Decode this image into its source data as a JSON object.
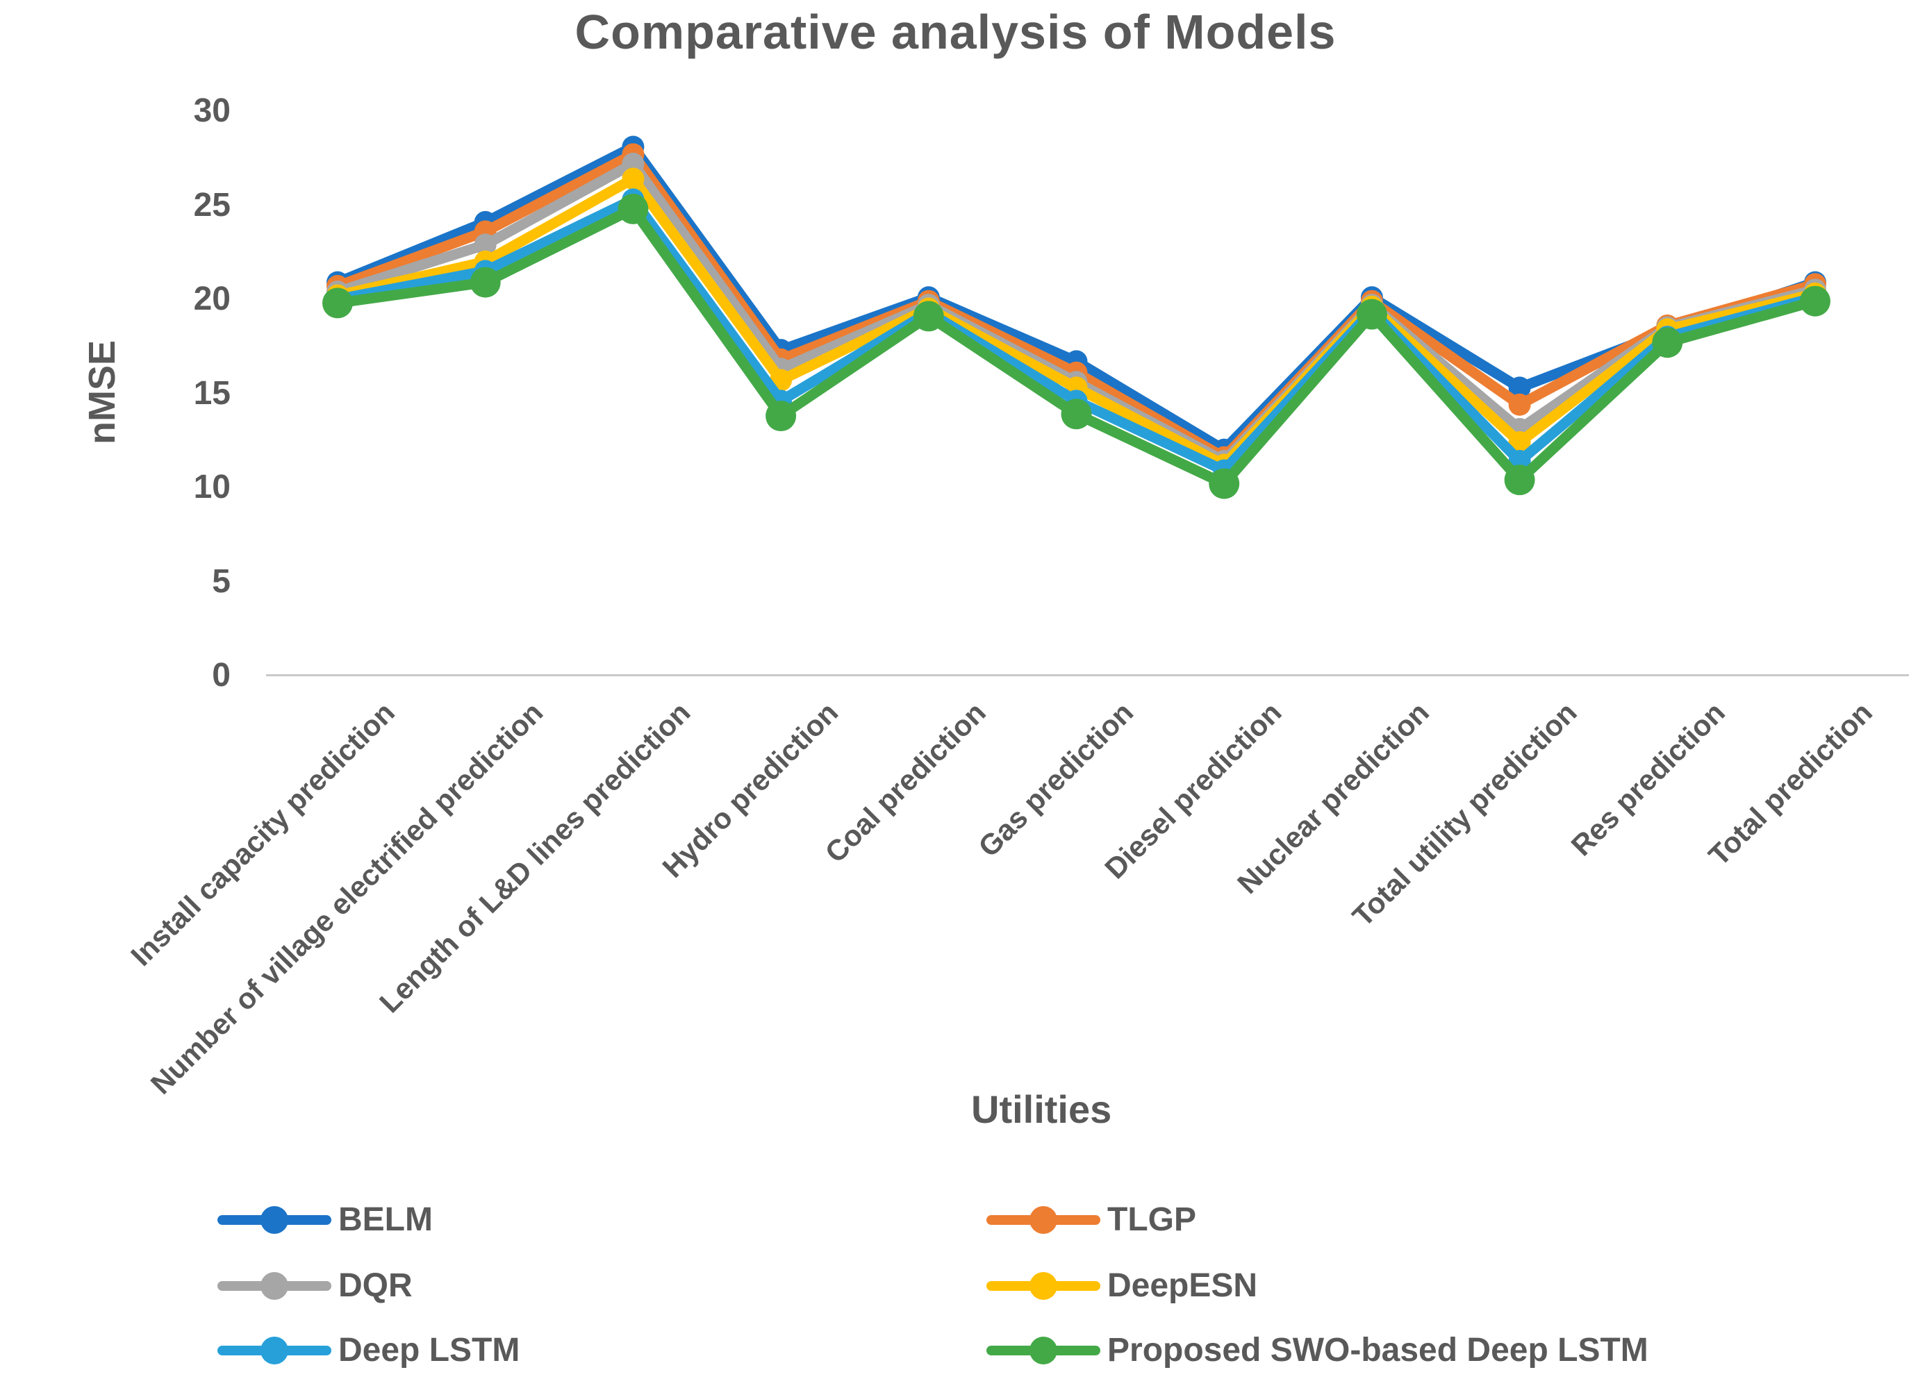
{
  "chart_data": {
    "type": "line",
    "title": "Comparative analysis of Models",
    "xlabel": "Utilities",
    "ylabel": "nMSE",
    "ylim": [
      0,
      30
    ],
    "ytick_labels": [
      "30",
      "25",
      "20",
      "15",
      "10",
      "5",
      "0"
    ],
    "grid": false,
    "legend_position": "bottom",
    "categories": [
      "Install capacity prediction",
      "Number of village electrified prediction",
      "Length of L&D lines prediction",
      "Hydro prediction",
      "Coal prediction",
      "Gas prediction",
      "Diesel prediction",
      "Nuclear prediction",
      "Total utility prediction",
      "Res prediction",
      "Total prediction"
    ],
    "series": [
      {
        "name": "BELM",
        "color": "#1B74C8",
        "values": [
          20.9,
          24.1,
          28.1,
          17.3,
          20.1,
          16.7,
          12.0,
          20.1,
          15.3,
          18.3,
          20.9
        ]
      },
      {
        "name": "TLGP",
        "color": "#ED7D31",
        "values": [
          20.7,
          23.6,
          27.7,
          16.8,
          19.9,
          16.1,
          11.6,
          19.9,
          14.4,
          18.6,
          20.8
        ]
      },
      {
        "name": "DQR",
        "color": "#A6A6A6",
        "values": [
          20.4,
          22.9,
          27.2,
          16.3,
          19.7,
          15.6,
          11.4,
          19.7,
          13.1,
          18.5,
          20.5
        ]
      },
      {
        "name": "DeepESN",
        "color": "#FFC000",
        "values": [
          20.2,
          22.0,
          26.4,
          15.7,
          19.5,
          15.3,
          11.2,
          19.6,
          12.4,
          18.4,
          20.3
        ]
      },
      {
        "name": "Deep LSTM",
        "color": "#27A0DA",
        "values": [
          20.0,
          21.5,
          25.3,
          14.6,
          19.3,
          14.6,
          10.9,
          19.4,
          11.4,
          18.0,
          20.1
        ]
      },
      {
        "name": "Proposed SWO-based Deep LSTM",
        "color": "#43A947",
        "values": [
          19.8,
          20.9,
          24.8,
          13.8,
          19.1,
          13.9,
          10.2,
          19.2,
          10.4,
          17.7,
          19.9
        ]
      }
    ],
    "legend_columns": [
      [
        0,
        2,
        4
      ],
      [
        1,
        3,
        5
      ]
    ]
  },
  "colors": {
    "text": "#595959",
    "axis_line": "#C9C9C9",
    "background": "#FFFFFF"
  }
}
